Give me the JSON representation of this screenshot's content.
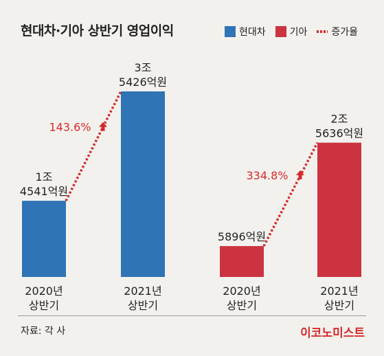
{
  "title": "현대차·기아 상반기 영업이익",
  "legend": {
    "hyundai": "현대차",
    "kia": "기아",
    "growth": "증가율"
  },
  "colors": {
    "hyundai": "#2f74b5",
    "kia": "#cc3340",
    "growth": "#d42a2a",
    "background": "#f2f1ee"
  },
  "source": "자료: 각 사",
  "brand": "이코노미스트",
  "chart_data": [
    {
      "type": "bar",
      "series": [
        {
          "name": "현대차",
          "values": [
            1.4541,
            3.5426
          ],
          "unit": "조원"
        }
      ],
      "categories": [
        [
          "2020년",
          "상반기"
        ],
        [
          "2021년",
          "상반기"
        ]
      ],
      "value_labels": [
        [
          "1조",
          "4541억원"
        ],
        [
          "3조",
          "5426억원"
        ]
      ],
      "growth_label": "143.6%",
      "color": "#2f74b5"
    },
    {
      "type": "bar",
      "series": [
        {
          "name": "기아",
          "values": [
            0.5896,
            2.5636
          ],
          "unit": "조원"
        }
      ],
      "categories": [
        [
          "2020년",
          "상반기"
        ],
        [
          "2021년",
          "상반기"
        ]
      ],
      "value_labels": [
        [
          "5896억원"
        ],
        [
          "2조",
          "5636억원"
        ]
      ],
      "growth_label": "334.8%",
      "color": "#cc3340"
    }
  ]
}
